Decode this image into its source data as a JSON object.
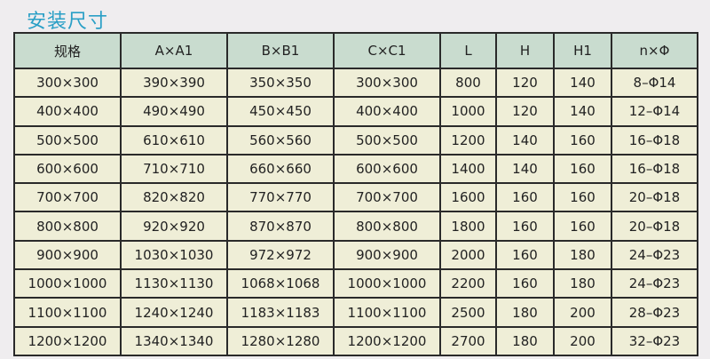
{
  "title": "安装尺寸",
  "colors": {
    "title": "#2a9fc6",
    "header_bg": "#c9dccf",
    "row_bg": "#efeed7"
  },
  "table": {
    "headers": [
      "规格",
      "A×A1",
      "B×B1",
      "C×C1",
      "L",
      "H",
      "H1",
      "n×Φ"
    ],
    "rows": [
      [
        "300×300",
        "390×390",
        "350×350",
        "300×300",
        "800",
        "120",
        "140",
        "8–Φ14"
      ],
      [
        "400×400",
        "490×490",
        "450×450",
        "400×400",
        "1000",
        "120",
        "140",
        "12–Φ14"
      ],
      [
        "500×500",
        "610×610",
        "560×560",
        "500×500",
        "1200",
        "140",
        "160",
        "16–Φ18"
      ],
      [
        "600×600",
        "710×710",
        "660×660",
        "600×600",
        "1400",
        "140",
        "160",
        "16–Φ18"
      ],
      [
        "700×700",
        "820×820",
        "770×770",
        "700×700",
        "1600",
        "160",
        "160",
        "20–Φ18"
      ],
      [
        "800×800",
        "920×920",
        "870×870",
        "800×800",
        "1800",
        "160",
        "160",
        "20–Φ18"
      ],
      [
        "900×900",
        "1030×1030",
        "972×972",
        "900×900",
        "2000",
        "160",
        "180",
        "24–Φ23"
      ],
      [
        "1000×1000",
        "1130×1130",
        "1068×1068",
        "1000×1000",
        "2200",
        "160",
        "180",
        "24–Φ23"
      ],
      [
        "1100×1100",
        "1240×1240",
        "1183×1183",
        "1100×1100",
        "2500",
        "180",
        "200",
        "28–Φ23"
      ],
      [
        "1200×1200",
        "1340×1340",
        "1280×1280",
        "1200×1200",
        "2700",
        "180",
        "200",
        "32–Φ23"
      ]
    ]
  }
}
